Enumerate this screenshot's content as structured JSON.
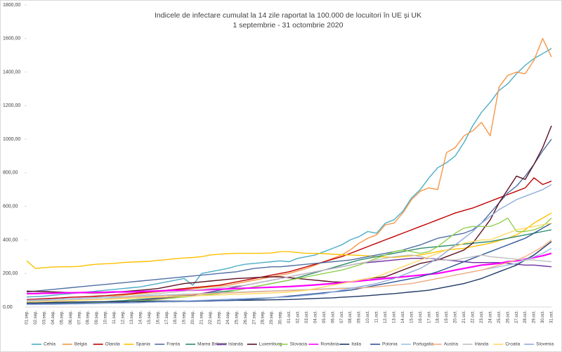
{
  "chart_data": {
    "type": "line",
    "title": "Indicele de infectare cumulat la 14 zile raportat la 100.000 de locuitori în UE și UK",
    "subtitle": "1 septembrie - 31 octombrie 2020",
    "categories": [
      "01.sep.",
      "02.sep.",
      "03.sep.",
      "04.sep.",
      "05.sep.",
      "06.sep.",
      "07.sep.",
      "08.sep.",
      "09.sep.",
      "10.sep.",
      "11.sep.",
      "12.sep.",
      "13.sep.",
      "14.sep.",
      "15.sep.",
      "16.sep.",
      "17.sep.",
      "18.sep.",
      "19.sep.",
      "20.sep.",
      "21.sep.",
      "22.sep.",
      "23.sep.",
      "24.sep.",
      "25.sep.",
      "26.sep.",
      "27.sep.",
      "28.sep.",
      "29.sep.",
      "30.sep.",
      "01.oct.",
      "02.oct.",
      "03.oct.",
      "04.oct.",
      "05.oct.",
      "06.oct.",
      "07.oct.",
      "08.oct.",
      "09.oct.",
      "10.oct.",
      "11.oct.",
      "12.oct.",
      "13.oct.",
      "14.oct.",
      "15.oct.",
      "16.oct.",
      "17.oct.",
      "18.oct.",
      "19.oct.",
      "20.oct.",
      "21.oct.",
      "22.oct.",
      "23.oct.",
      "24.oct.",
      "25.oct.",
      "26.oct.",
      "27.oct.",
      "28.oct.",
      "29.oct.",
      "30.oct.",
      "31.oct."
    ],
    "ylim": [
      0,
      1800
    ],
    "yticks": [
      {
        "value": 0,
        "label": "0,00"
      },
      {
        "value": 200,
        "label": "200,00"
      },
      {
        "value": 400,
        "label": "400,00"
      },
      {
        "value": 600,
        "label": "600,00"
      },
      {
        "value": 800,
        "label": "800,00"
      },
      {
        "value": 1000,
        "label": "1000,00"
      },
      {
        "value": 1200,
        "label": "1200,00"
      },
      {
        "value": 1400,
        "label": "1400,00"
      },
      {
        "value": 1600,
        "label": "1600,00"
      },
      {
        "value": 1800,
        "label": "1800,00"
      }
    ],
    "grid": false,
    "legend": "bottom",
    "series": [
      {
        "name": "Cehia",
        "color": "#4bacc6",
        "values": [
          60,
          62,
          65,
          70,
          75,
          80,
          85,
          90,
          95,
          100,
          105,
          110,
          115,
          120,
          130,
          140,
          150,
          160,
          170,
          130,
          200,
          210,
          220,
          230,
          245,
          255,
          260,
          265,
          270,
          275,
          270,
          290,
          300,
          310,
          330,
          350,
          370,
          400,
          420,
          450,
          440,
          500,
          520,
          570,
          650,
          700,
          770,
          830,
          860,
          900,
          980,
          1080,
          1160,
          1220,
          1290,
          1330,
          1390,
          1440,
          1480,
          1510,
          1540
        ]
      },
      {
        "name": "Belgia",
        "color": "#f79646",
        "values": [
          40,
          40,
          42,
          45,
          48,
          50,
          52,
          55,
          58,
          60,
          65,
          70,
          75,
          80,
          85,
          90,
          95,
          100,
          105,
          110,
          115,
          120,
          125,
          130,
          140,
          150,
          160,
          170,
          180,
          190,
          200,
          215,
          230,
          250,
          270,
          290,
          310,
          340,
          380,
          410,
          430,
          490,
          500,
          560,
          640,
          690,
          710,
          700,
          920,
          950,
          1020,
          1050,
          1100,
          1020,
          1310,
          1380,
          1400,
          1390,
          1470,
          1600,
          1490
        ]
      },
      {
        "name": "Olanda",
        "color": "#c00000",
        "values": [
          45,
          47,
          50,
          52,
          55,
          58,
          60,
          62,
          65,
          68,
          72,
          76,
          80,
          85,
          90,
          95,
          100,
          105,
          110,
          115,
          120,
          125,
          130,
          140,
          150,
          160,
          170,
          180,
          190,
          200,
          210,
          225,
          240,
          255,
          270,
          285,
          300,
          320,
          340,
          360,
          380,
          400,
          420,
          440,
          460,
          480,
          500,
          520,
          540,
          560,
          575,
          590,
          610,
          630,
          650,
          670,
          690,
          710,
          770,
          730,
          750
        ]
      },
      {
        "name": "Spania",
        "color": "#ffc000",
        "values": [
          275,
          230,
          235,
          238,
          240,
          240,
          242,
          250,
          255,
          258,
          260,
          265,
          268,
          270,
          272,
          278,
          282,
          288,
          292,
          295,
          300,
          310,
          315,
          318,
          320,
          320,
          320,
          320,
          322,
          330,
          330,
          325,
          320,
          320,
          318,
          315,
          312,
          310,
          308,
          305,
          300,
          298,
          296,
          300,
          305,
          310,
          320,
          330,
          340,
          345,
          350,
          360,
          370,
          380,
          395,
          410,
          430,
          460,
          500,
          530,
          560
        ]
      },
      {
        "name": "Franta",
        "color": "#4f6fa5",
        "values": [
          90,
          95,
          100,
          105,
          110,
          115,
          120,
          125,
          130,
          135,
          140,
          145,
          150,
          155,
          160,
          165,
          170,
          175,
          180,
          185,
          190,
          195,
          200,
          205,
          210,
          220,
          230,
          235,
          240,
          240,
          245,
          250,
          255,
          260,
          265,
          270,
          275,
          280,
          290,
          300,
          310,
          320,
          330,
          340,
          355,
          370,
          390,
          410,
          420,
          430,
          440,
          460,
          500,
          560,
          620,
          680,
          720,
          780,
          850,
          930,
          1000
        ]
      },
      {
        "name": "Marea Britanie",
        "color": "#2e8b6e",
        "values": [
          20,
          21,
          22,
          23,
          24,
          25,
          26,
          28,
          30,
          32,
          35,
          38,
          42,
          46,
          50,
          55,
          60,
          65,
          70,
          75,
          80,
          85,
          90,
          95,
          100,
          110,
          120,
          130,
          140,
          150,
          160,
          175,
          190,
          205,
          220,
          235,
          250,
          265,
          280,
          290,
          300,
          310,
          320,
          330,
          340,
          350,
          355,
          360,
          365,
          370,
          375,
          380,
          385,
          390,
          400,
          410,
          420,
          430,
          440,
          450,
          460
        ]
      },
      {
        "name": "Islanda",
        "color": "#7030a0",
        "values": [
          20,
          20,
          20,
          20,
          20,
          20,
          20,
          22,
          24,
          26,
          28,
          30,
          35,
          40,
          45,
          50,
          55,
          60,
          65,
          70,
          80,
          90,
          100,
          110,
          120,
          130,
          140,
          150,
          160,
          170,
          180,
          190,
          200,
          210,
          220,
          230,
          240,
          250,
          260,
          265,
          270,
          275,
          280,
          285,
          290,
          290,
          290,
          285,
          280,
          275,
          270,
          265,
          265,
          265,
          265,
          260,
          255,
          250,
          250,
          245,
          240
        ]
      },
      {
        "name": "Luxemburg",
        "color": "#5c0f1f",
        "values": [
          95,
          93,
          92,
          90,
          88,
          86,
          85,
          84,
          84,
          85,
          88,
          92,
          96,
          100,
          105,
          110,
          120,
          130,
          140,
          145,
          150,
          155,
          160,
          165,
          170,
          172,
          175,
          178,
          180,
          180,
          175,
          170,
          165,
          160,
          155,
          150,
          148,
          150,
          160,
          170,
          175,
          180,
          200,
          220,
          240,
          260,
          270,
          280,
          300,
          320,
          340,
          380,
          450,
          520,
          620,
          700,
          780,
          760,
          850,
          950,
          1080
        ]
      },
      {
        "name": "Slovacia",
        "color": "#92d050",
        "values": [
          20,
          20,
          21,
          22,
          23,
          24,
          25,
          26,
          28,
          30,
          32,
          34,
          36,
          38,
          40,
          45,
          50,
          55,
          60,
          65,
          70,
          75,
          80,
          90,
          100,
          110,
          120,
          130,
          140,
          150,
          160,
          170,
          180,
          190,
          200,
          210,
          220,
          235,
          250,
          270,
          290,
          310,
          330,
          340,
          330,
          320,
          330,
          360,
          400,
          440,
          470,
          480,
          480,
          480,
          500,
          530,
          450,
          450,
          460,
          480,
          530
        ]
      },
      {
        "name": "România",
        "color": "#ff00ff",
        "values": [
          80,
          80,
          82,
          82,
          84,
          85,
          86,
          87,
          88,
          88,
          90,
          90,
          90,
          92,
          94,
          96,
          98,
          100,
          100,
          100,
          102,
          104,
          106,
          108,
          110,
          112,
          114,
          116,
          118,
          120,
          122,
          125,
          128,
          132,
          136,
          140,
          145,
          150,
          155,
          160,
          165,
          170,
          175,
          180,
          185,
          190,
          195,
          200,
          210,
          220,
          230,
          240,
          250,
          255,
          260,
          270,
          275,
          285,
          295,
          305,
          320
        ]
      },
      {
        "name": "Italia",
        "color": "#1f3864",
        "values": [
          25,
          26,
          27,
          28,
          29,
          30,
          30,
          31,
          32,
          32,
          33,
          33,
          34,
          34,
          35,
          35,
          36,
          36,
          37,
          37,
          38,
          38,
          39,
          39,
          40,
          40,
          41,
          42,
          43,
          44,
          45,
          47,
          49,
          51,
          53,
          55,
          58,
          61,
          64,
          68,
          72,
          76,
          80,
          85,
          90,
          95,
          100,
          110,
          120,
          130,
          140,
          155,
          170,
          190,
          210,
          230,
          250,
          280,
          310,
          350,
          390
        ]
      },
      {
        "name": "Polonia",
        "color": "#2f5597",
        "values": [
          20,
          20,
          21,
          21,
          22,
          22,
          23,
          23,
          24,
          24,
          25,
          26,
          27,
          28,
          29,
          30,
          31,
          32,
          33,
          34,
          35,
          36,
          38,
          40,
          42,
          45,
          48,
          51,
          55,
          60,
          65,
          70,
          75,
          80,
          85,
          90,
          95,
          100,
          110,
          120,
          130,
          140,
          150,
          160,
          170,
          180,
          195,
          210,
          230,
          250,
          270,
          290,
          310,
          330,
          350,
          370,
          390,
          410,
          440,
          470,
          500
        ]
      },
      {
        "name": "Portugalia",
        "color": "#9dc3e6",
        "values": [
          40,
          42,
          44,
          46,
          48,
          50,
          52,
          54,
          56,
          58,
          60,
          62,
          64,
          66,
          68,
          70,
          72,
          74,
          76,
          78,
          80,
          82,
          84,
          86,
          88,
          90,
          92,
          94,
          96,
          98,
          100,
          102,
          104,
          106,
          108,
          110,
          112,
          114,
          116,
          118,
          120,
          125,
          130,
          135,
          140,
          150,
          160,
          170,
          180,
          190,
          200,
          210,
          220,
          230,
          240,
          250,
          260,
          280,
          300,
          320,
          350
        ]
      },
      {
        "name": "Austria",
        "color": "#f4b183",
        "values": [
          30,
          32,
          34,
          36,
          38,
          40,
          42,
          45,
          48,
          50,
          52,
          55,
          58,
          60,
          62,
          65,
          68,
          70,
          72,
          75,
          78,
          80,
          82,
          84,
          86,
          88,
          90,
          92,
          94,
          96,
          98,
          100,
          102,
          104,
          106,
          108,
          110,
          112,
          114,
          116,
          120,
          125,
          130,
          135,
          140,
          150,
          160,
          170,
          180,
          190,
          200,
          210,
          220,
          235,
          250,
          265,
          280,
          300,
          330,
          360,
          400
        ]
      },
      {
        "name": "Irlanda",
        "color": "#bfbfbf",
        "values": [
          35,
          36,
          37,
          38,
          40,
          42,
          44,
          46,
          48,
          50,
          55,
          60,
          65,
          70,
          75,
          80,
          85,
          90,
          95,
          100,
          105,
          110,
          115,
          120,
          125,
          130,
          140,
          150,
          160,
          170,
          180,
          190,
          200,
          210,
          220,
          230,
          240,
          250,
          260,
          270,
          280,
          290,
          300,
          305,
          310,
          300,
          290,
          280,
          280,
          280,
          290,
          300,
          310,
          300,
          295,
          290,
          285,
          280,
          280,
          275,
          270
        ]
      },
      {
        "name": "Croatia",
        "color": "#ffd966",
        "values": [
          30,
          30,
          32,
          34,
          36,
          38,
          40,
          42,
          44,
          46,
          48,
          50,
          52,
          54,
          56,
          58,
          60,
          62,
          64,
          66,
          68,
          70,
          72,
          74,
          76,
          78,
          80,
          82,
          84,
          86,
          90,
          95,
          100,
          110,
          120,
          130,
          140,
          150,
          160,
          170,
          180,
          200,
          220,
          240,
          260,
          280,
          300,
          320,
          340,
          360,
          380,
          390,
          400,
          400,
          420,
          440,
          460,
          470,
          480,
          490,
          500
        ]
      },
      {
        "name": "Slovenia",
        "color": "#8faadc",
        "values": [
          15,
          15,
          16,
          16,
          17,
          18,
          19,
          20,
          21,
          22,
          23,
          24,
          25,
          26,
          28,
          30,
          32,
          34,
          36,
          38,
          40,
          42,
          44,
          46,
          48,
          50,
          52,
          54,
          56,
          58,
          60,
          65,
          70,
          75,
          80,
          90,
          100,
          110,
          120,
          130,
          140,
          155,
          170,
          190,
          210,
          230,
          260,
          290,
          330,
          370,
          410,
          450,
          500,
          540,
          580,
          610,
          640,
          660,
          680,
          700,
          730
        ]
      }
    ]
  }
}
